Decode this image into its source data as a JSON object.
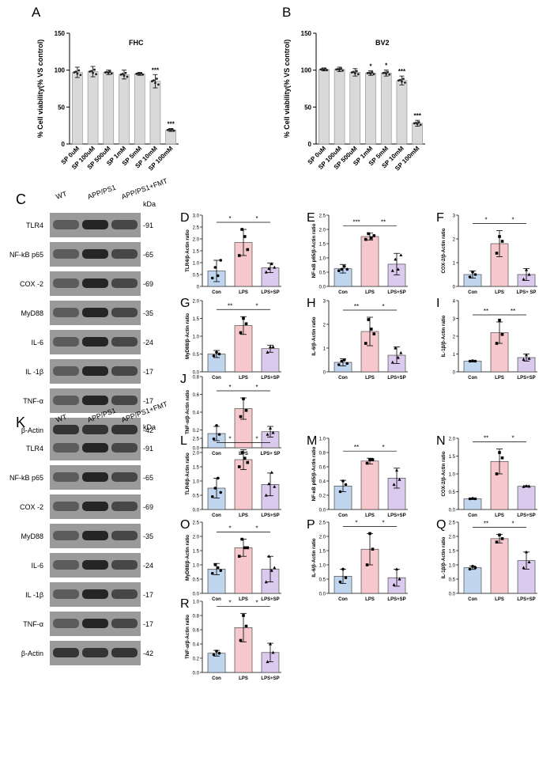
{
  "colors": {
    "con": "#bfd6ee",
    "lps": "#f6c8cb",
    "sp": "#dcc9ee",
    "grey": "#d9d9d9"
  },
  "via": [
    {
      "panel": "A",
      "title": "FHC",
      "ylabel": "% Cell viability(% VS control)",
      "yticks": [
        "0",
        "50",
        "100",
        "150"
      ],
      "ylim": [
        0,
        150
      ],
      "categories": [
        "SP 0uM",
        "SP 100uM",
        "SP 500uM",
        "SP 1mM",
        "SP 5mM",
        "SP 10mM",
        "SP 100mM"
      ],
      "values": [
        97,
        98,
        97,
        94,
        95,
        85,
        19
      ],
      "errors": [
        7,
        7,
        3,
        6,
        2,
        9,
        2
      ],
      "sig": [
        "",
        "",
        "",
        "",
        "",
        "***",
        "***"
      ]
    },
    {
      "panel": "B",
      "title": "BV2",
      "ylabel": "% Cell viability(% VS control)",
      "yticks": [
        "0",
        "50",
        "100",
        "150"
      ],
      "ylim": [
        0,
        150
      ],
      "categories": [
        "SP 0uM",
        "SP 100uM",
        "SP 500uM",
        "SP 1mM",
        "SP 5mM",
        "SP 10mM",
        "SP 100mM"
      ],
      "values": [
        101,
        101,
        97,
        96,
        96,
        86,
        28
      ],
      "errors": [
        2,
        3,
        5,
        3,
        4,
        6,
        4
      ],
      "sig": [
        "",
        "",
        "",
        "*",
        "*",
        "***",
        "***"
      ]
    }
  ],
  "wb1": {
    "panel": "C",
    "cols": [
      "WT",
      "APP/PS1",
      "APP/PS1+FMT"
    ],
    "kda_label": "kDa",
    "rows": [
      {
        "label": "TLR4",
        "kda": "-91"
      },
      {
        "label": "NF-kB p65",
        "kda": "-65"
      },
      {
        "label": "COX -2",
        "kda": "-69"
      },
      {
        "label": "MyD88",
        "kda": "-35"
      },
      {
        "label": "IL-6",
        "kda": "-24"
      },
      {
        "label": "IL -1β",
        "kda": "-17"
      },
      {
        "label": "TNF-α",
        "kda": "-17"
      },
      {
        "label": "β-Actin",
        "kda": "-42"
      }
    ]
  },
  "wb2": {
    "panel": "K",
    "cols": [
      "WT",
      "APP/PS1",
      "APP/PS1+FMT"
    ],
    "kda_label": "kDa",
    "rows": [
      {
        "label": "TLR4",
        "kda": "-91"
      },
      {
        "label": "NF-kB p65",
        "kda": "-65"
      },
      {
        "label": "COX -2",
        "kda": "-69"
      },
      {
        "label": "MyD88",
        "kda": "-35"
      },
      {
        "label": "IL-6",
        "kda": "-24"
      },
      {
        "label": "IL -1β",
        "kda": "-17"
      },
      {
        "label": "TNF-α",
        "kda": "-17"
      },
      {
        "label": "β-Actin",
        "kda": "-42"
      }
    ]
  },
  "chart_data": [
    {
      "type": "bar",
      "panel": "A",
      "title": "FHC",
      "ylabel": "% Cell viability(% VS control)",
      "categories": [
        "SP 0uM",
        "SP 100uM",
        "SP 500uM",
        "SP 1mM",
        "SP 5mM",
        "SP 10mM",
        "SP 100mM"
      ],
      "values": [
        97,
        98,
        97,
        94,
        95,
        85,
        19
      ],
      "ylim": [
        0,
        150
      ]
    },
    {
      "type": "bar",
      "panel": "B",
      "title": "BV2",
      "ylabel": "% Cell viability(% VS control)",
      "categories": [
        "SP 0uM",
        "SP 100uM",
        "SP 500uM",
        "SP 1mM",
        "SP 5mM",
        "SP 10mM",
        "SP 100mM"
      ],
      "values": [
        101,
        101,
        97,
        96,
        96,
        86,
        28
      ],
      "ylim": [
        0,
        150
      ]
    },
    {
      "type": "bar",
      "panel": "D",
      "ylabel": "TLR4/β-Actin ratio",
      "categories": [
        "Con",
        "LPS",
        "LPS+SP"
      ],
      "values": [
        0.65,
        1.85,
        0.78
      ],
      "errors": [
        0.45,
        0.55,
        0.2
      ],
      "ylim": [
        0,
        3
      ],
      "yticks": [
        "0",
        "0.5",
        "1.0",
        "1.5",
        "2.0",
        "2.5",
        "3.0"
      ],
      "points": [
        [
          0.35,
          0.8,
          0.45,
          1.1
        ],
        [
          1.3,
          2.4,
          2.1,
          1.55
        ],
        [
          0.6,
          0.75,
          0.95,
          0.8
        ]
      ],
      "sig": [
        [
          "*",
          0,
          1
        ],
        [
          "*",
          1,
          2
        ]
      ]
    },
    {
      "type": "bar",
      "panel": "E",
      "ylabel": "NF-κB p65/β-Actin ratio",
      "categories": [
        "Con",
        "LPS",
        "LPS+SP"
      ],
      "values": [
        0.62,
        1.75,
        0.78
      ],
      "errors": [
        0.15,
        0.12,
        0.38
      ],
      "ylim": [
        0,
        2.5
      ],
      "yticks": [
        "0.0",
        "0.5",
        "1.0",
        "1.5",
        "2.0",
        "2.5"
      ],
      "points": [
        [
          0.55,
          0.6,
          0.7,
          0.6
        ],
        [
          1.65,
          1.85,
          1.7,
          1.78
        ],
        [
          0.55,
          0.95,
          0.6,
          1.1
        ]
      ],
      "sig": [
        [
          "***",
          0,
          1
        ],
        [
          "**",
          1,
          2
        ]
      ]
    },
    {
      "type": "bar",
      "panel": "F",
      "ylabel": "COX-2/β-Actin ratio",
      "categories": [
        "Con",
        "LPS",
        "LPS+ SP"
      ],
      "values": [
        0.5,
        1.8,
        0.5
      ],
      "errors": [
        0.15,
        0.55,
        0.25
      ],
      "ylim": [
        0,
        3
      ],
      "yticks": [
        "0",
        "1",
        "2",
        "3"
      ],
      "points": [
        [
          0.4,
          0.6,
          0.5
        ],
        [
          1.4,
          2.1,
          1.9
        ],
        [
          0.3,
          0.7,
          0.5
        ]
      ],
      "sig": [
        [
          "*",
          0,
          1
        ],
        [
          "*",
          1,
          2
        ]
      ]
    },
    {
      "type": "bar",
      "panel": "G",
      "ylabel": "MyD88/β-Actin ratio",
      "categories": [
        "Con",
        "LPS",
        "LPS+SP"
      ],
      "values": [
        0.5,
        1.3,
        0.65
      ],
      "errors": [
        0.1,
        0.25,
        0.1
      ],
      "ylim": [
        0,
        2
      ],
      "yticks": [
        "0.0",
        "0.5",
        "1.0",
        "1.5",
        "2.0"
      ],
      "points": [
        [
          0.45,
          0.55,
          0.5
        ],
        [
          1.1,
          1.5,
          1.35
        ],
        [
          0.55,
          0.7,
          0.7
        ]
      ],
      "sig": [
        [
          "**",
          0,
          1
        ],
        [
          "*",
          1,
          2
        ]
      ]
    },
    {
      "type": "bar",
      "panel": "H",
      "ylabel": "IL-6/β-Actin ratio",
      "categories": [
        "Con",
        "LPS",
        "LPS+SP"
      ],
      "values": [
        0.4,
        1.7,
        0.7
      ],
      "errors": [
        0.15,
        0.6,
        0.35
      ],
      "ylim": [
        0,
        3
      ],
      "yticks": [
        "0",
        "1",
        "2",
        "3"
      ],
      "points": [
        [
          0.3,
          0.45,
          0.5,
          0.35
        ],
        [
          1.2,
          2.2,
          1.8,
          1.6
        ],
        [
          0.4,
          1.0,
          0.6,
          0.8
        ]
      ],
      "sig": [
        [
          "**",
          0,
          1
        ],
        [
          "*",
          1,
          2
        ]
      ]
    },
    {
      "type": "bar",
      "panel": "I",
      "ylabel": "IL-1β/β-Actin ratio",
      "categories": [
        "Con",
        "LPS",
        "LPS+SP"
      ],
      "values": [
        0.6,
        2.2,
        0.8
      ],
      "errors": [
        0.05,
        0.6,
        0.2
      ],
      "ylim": [
        0,
        4
      ],
      "yticks": [
        "0",
        "1",
        "2",
        "3",
        "4"
      ],
      "points": [
        [
          0.6,
          0.62,
          0.6
        ],
        [
          1.6,
          2.9,
          2.1
        ],
        [
          0.7,
          0.95,
          0.75
        ]
      ],
      "sig": [
        [
          "**",
          0,
          1
        ],
        [
          "**",
          1,
          2
        ]
      ]
    },
    {
      "type": "bar",
      "panel": "J",
      "ylabel": "TNF-α/β-Actin ratio",
      "categories": [
        "Con",
        "LPS",
        "LPS+ SP"
      ],
      "values": [
        0.16,
        0.44,
        0.18
      ],
      "errors": [
        0.08,
        0.12,
        0.06
      ],
      "ylim": [
        0,
        0.8
      ],
      "yticks": [
        "0.0",
        "0.2",
        "0.4",
        "0.6",
        "0.8"
      ],
      "points": [
        [
          0.1,
          0.25,
          0.15
        ],
        [
          0.35,
          0.55,
          0.42
        ],
        [
          0.15,
          0.22,
          0.17
        ]
      ],
      "sig": [
        [
          "*",
          0,
          1
        ],
        [
          "*",
          1,
          2
        ]
      ]
    },
    {
      "type": "bar",
      "panel": "L",
      "ylabel": "TLR4/β-Actin ratio",
      "categories": [
        "Con",
        "LPS",
        "LPS+SP"
      ],
      "values": [
        0.75,
        1.75,
        0.88
      ],
      "errors": [
        0.35,
        0.35,
        0.4
      ],
      "ylim": [
        0,
        2.5
      ],
      "yticks": [
        "0.0",
        "0.5",
        "1.0",
        "1.5",
        "2.0",
        "2.5"
      ],
      "points": [
        [
          0.45,
          0.75,
          1.1,
          0.6
        ],
        [
          1.5,
          2.0,
          1.8,
          1.65
        ],
        [
          0.5,
          0.9,
          1.3,
          0.8
        ]
      ],
      "sig": [
        [
          "*",
          0,
          1
        ],
        [
          "*",
          1,
          2
        ]
      ]
    },
    {
      "type": "bar",
      "panel": "M",
      "ylabel": "NF-κB p65/β-Actin ratio",
      "categories": [
        "Con",
        "LPS",
        "LPS+SP"
      ],
      "values": [
        0.33,
        0.68,
        0.44
      ],
      "errors": [
        0.08,
        0.04,
        0.14
      ],
      "ylim": [
        0,
        1.0
      ],
      "yticks": [
        "0.0",
        "0.2",
        "0.4",
        "0.6",
        "0.8",
        "1.0"
      ],
      "points": [
        [
          0.25,
          0.4,
          0.35
        ],
        [
          0.65,
          0.7,
          0.7
        ],
        [
          0.35,
          0.55,
          0.42
        ]
      ],
      "sig": [
        [
          "**",
          0,
          1
        ],
        [
          "*",
          1,
          2
        ]
      ]
    },
    {
      "type": "bar",
      "panel": "N",
      "ylabel": "COX-2/β-Actin ratio",
      "categories": [
        "Con",
        "LPS",
        "LPS+SP"
      ],
      "values": [
        0.3,
        1.35,
        0.65
      ],
      "errors": [
        0.02,
        0.35,
        0.02
      ],
      "ylim": [
        0,
        2.0
      ],
      "yticks": [
        "0.0",
        "0.5",
        "1.0",
        "1.5",
        "2.0"
      ],
      "points": [
        [
          0.3,
          0.31,
          0.3
        ],
        [
          1.0,
          1.6,
          1.45
        ],
        [
          0.64,
          0.66,
          0.65
        ]
      ],
      "sig": [
        [
          "**",
          0,
          1
        ],
        [
          "*",
          1,
          2
        ]
      ]
    },
    {
      "type": "bar",
      "panel": "O",
      "ylabel": "MyD88/β-Actin ratio",
      "categories": [
        "Con",
        "LPS",
        "LPS+SP"
      ],
      "values": [
        0.85,
        1.6,
        0.85
      ],
      "errors": [
        0.2,
        0.3,
        0.45
      ],
      "ylim": [
        0,
        2.5
      ],
      "yticks": [
        "0.0",
        "0.5",
        "1.0",
        "1.5",
        "2.0",
        "2.5"
      ],
      "points": [
        [
          0.7,
          1.0,
          0.9,
          0.8
        ],
        [
          1.3,
          1.9,
          1.6,
          1.6
        ],
        [
          0.4,
          1.3,
          0.8,
          0.9
        ]
      ],
      "sig": [
        [
          "*",
          0,
          1
        ],
        [
          "*",
          1,
          2
        ]
      ]
    },
    {
      "type": "bar",
      "panel": "P",
      "ylabel": "IL-6/β-Actin ratio",
      "categories": [
        "Con",
        "LPS",
        "LPS+SP"
      ],
      "values": [
        0.6,
        1.55,
        0.55
      ],
      "errors": [
        0.25,
        0.55,
        0.3
      ],
      "ylim": [
        0,
        2.5
      ],
      "yticks": [
        "0.0",
        "0.5",
        "1.0",
        "1.5",
        "2.0",
        "2.5"
      ],
      "points": [
        [
          0.4,
          0.85,
          0.55
        ],
        [
          1.0,
          2.1,
          1.55
        ],
        [
          0.3,
          0.85,
          0.5
        ]
      ],
      "sig": [
        [
          "*",
          0,
          1
        ],
        [
          "*",
          1,
          2
        ]
      ]
    },
    {
      "type": "bar",
      "panel": "Q",
      "ylabel": "IL-1β/β-Actin ratio",
      "categories": [
        "Con",
        "LPS",
        "LPS+SP"
      ],
      "values": [
        0.9,
        1.92,
        1.15
      ],
      "errors": [
        0.06,
        0.15,
        0.3
      ],
      "ylim": [
        0,
        2.5
      ],
      "yticks": [
        "0.0",
        "0.5",
        "1.0",
        "1.5",
        "2.0",
        "2.5"
      ],
      "points": [
        [
          0.85,
          0.95,
          0.9
        ],
        [
          1.8,
          2.05,
          1.92
        ],
        [
          0.9,
          1.45,
          1.1
        ]
      ],
      "sig": [
        [
          "**",
          0,
          1
        ],
        [
          "*",
          1,
          2
        ]
      ]
    },
    {
      "type": "bar",
      "panel": "R",
      "ylabel": "TNF-α/β-Actin ratio",
      "categories": [
        "Con",
        "LPS",
        "LPS+SP"
      ],
      "values": [
        0.27,
        0.63,
        0.28
      ],
      "errors": [
        0.04,
        0.2,
        0.13
      ],
      "ylim": [
        0,
        1.0
      ],
      "yticks": [
        "0.0",
        "0.2",
        "0.4",
        "0.6",
        "0.8",
        "1.0"
      ],
      "points": [
        [
          0.25,
          0.3,
          0.27
        ],
        [
          0.45,
          0.8,
          0.65
        ],
        [
          0.15,
          0.4,
          0.28
        ]
      ],
      "sig": [
        [
          "*",
          0,
          1
        ],
        [
          "*",
          1,
          2
        ]
      ]
    }
  ]
}
